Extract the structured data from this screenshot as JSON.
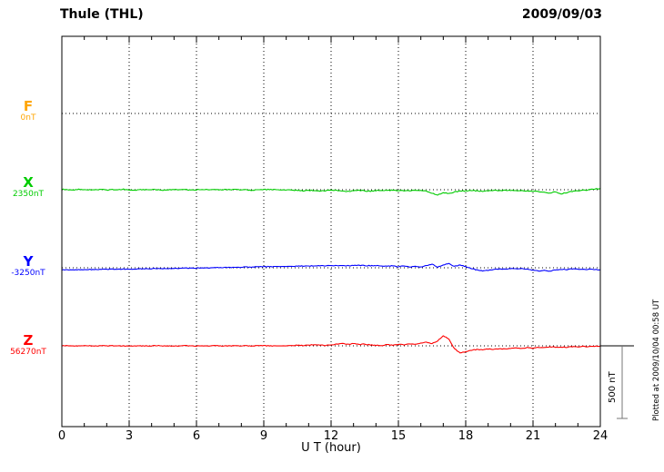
{
  "header": {
    "title": "Thule (THL)",
    "date": "2009/09/03"
  },
  "annotations": {
    "scale_bar_label": "500 nT",
    "plotted_at": "Plotted at 2009/10/04 00:58 UT"
  },
  "chart_data": {
    "type": "line",
    "title": "Thule (THL) magnetogram for 2009/09/03",
    "xlabel": "U T (hour)",
    "x_range": [
      0,
      24
    ],
    "x_ticks": [
      0,
      3,
      6,
      9,
      12,
      15,
      18,
      21,
      24
    ],
    "grid": "dotted vertical lines every 3 h; dotted horizontal line at each series baseline",
    "scale_bar_nT": 500,
    "legend_position": "left-gutter",
    "series": [
      {
        "name": "F",
        "baseline_label": "0nT",
        "baseline_nT": 0,
        "color": "#ffa500",
        "noise_nT": 0,
        "deviations_nT": []
      },
      {
        "name": "X",
        "baseline_label": "2350nT",
        "baseline_nT": 2350,
        "color": "#00cc00",
        "noise_nT": 6,
        "deviations_nT": [
          2,
          0,
          -2,
          3,
          1,
          -1,
          0,
          2,
          -2,
          0,
          1,
          3,
          0,
          -2,
          1,
          0,
          2,
          -1,
          -3,
          0,
          2,
          1,
          0,
          -2,
          0,
          1,
          2,
          0,
          -1,
          1,
          0,
          2,
          0,
          -2,
          -4,
          -2,
          0,
          2,
          0,
          -1,
          0,
          -2,
          -5,
          -8,
          -4,
          -6,
          -10,
          -6,
          -3,
          -4,
          -8,
          -12,
          -8,
          -5,
          -8,
          -10,
          -6,
          -4,
          -6,
          -3,
          -5,
          -8,
          -6,
          -4,
          -6,
          -10,
          -25,
          -35,
          -20,
          -28,
          -15,
          -10,
          -8,
          -5,
          -8,
          -12,
          -8,
          -5,
          -6,
          -4,
          -5,
          -8,
          -6,
          -10,
          -8,
          -12,
          -18,
          -25,
          -15,
          -28,
          -20,
          -12,
          -8,
          -4,
          0,
          5,
          8
        ]
      },
      {
        "name": "Y",
        "baseline_label": "-3250nT",
        "baseline_nT": -3250,
        "color": "#0000ff",
        "noise_nT": 5,
        "deviations_nT": [
          -15,
          -14,
          -14,
          -13,
          -13,
          -12,
          -12,
          -11,
          -10,
          -10,
          -9,
          -9,
          -8,
          -8,
          -7,
          -7,
          -6,
          -6,
          -5,
          -5,
          -4,
          -3,
          -3,
          -2,
          -2,
          -1,
          0,
          0,
          1,
          2,
          2,
          3,
          4,
          5,
          5,
          6,
          7,
          8,
          8,
          9,
          10,
          10,
          11,
          12,
          12,
          13,
          14,
          14,
          15,
          15,
          16,
          14,
          15,
          16,
          15,
          14,
          15,
          13,
          10,
          14,
          8,
          12,
          6,
          10,
          4,
          15,
          25,
          5,
          20,
          28,
          10,
          18,
          8,
          -5,
          -15,
          -22,
          -18,
          -12,
          -8,
          -10,
          -6,
          -8,
          -5,
          -10,
          -15,
          -22,
          -18,
          -25,
          -15,
          -10,
          -12,
          -8,
          -10,
          -12,
          -10,
          -12,
          -14
        ]
      },
      {
        "name": "Z",
        "baseline_label": "56270nT",
        "baseline_nT": 56270,
        "color": "#ff0000",
        "noise_nT": 5,
        "deviations_nT": [
          0,
          1,
          -1,
          0,
          2,
          0,
          -1,
          1,
          0,
          0,
          1,
          -1,
          0,
          1,
          0,
          -1,
          0,
          1,
          0,
          0,
          -1,
          0,
          1,
          0,
          -1,
          0,
          0,
          1,
          0,
          -1,
          0,
          1,
          0,
          0,
          -1,
          0,
          1,
          0,
          -1,
          0,
          1,
          2,
          4,
          2,
          5,
          8,
          5,
          3,
          6,
          12,
          18,
          10,
          15,
          8,
          12,
          6,
          4,
          2,
          8,
          4,
          12,
          6,
          15,
          10,
          18,
          25,
          15,
          35,
          70,
          45,
          -20,
          -50,
          -40,
          -30,
          -25,
          -28,
          -22,
          -25,
          -20,
          -22,
          -18,
          -15,
          -18,
          -12,
          -15,
          -10,
          -12,
          -8,
          -10,
          -8,
          -10,
          -6,
          -8,
          -4,
          -6,
          -3,
          -2
        ]
      }
    ]
  }
}
